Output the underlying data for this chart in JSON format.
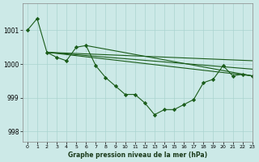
{
  "title": "Graphe pression niveau de la mer (hPa)",
  "xlim": [
    -0.5,
    23
  ],
  "ylim": [
    997.7,
    1001.8
  ],
  "yticks": [
    998,
    999,
    1000,
    1001
  ],
  "xticks": [
    0,
    1,
    2,
    3,
    4,
    5,
    6,
    7,
    8,
    9,
    10,
    11,
    12,
    13,
    14,
    15,
    16,
    17,
    18,
    19,
    20,
    21,
    22,
    23
  ],
  "bg_color": "#cce9e7",
  "grid_color": "#aad4d0",
  "line_color": "#1a5c1a",
  "line1": {
    "x": [
      0,
      1,
      2,
      3,
      4,
      5,
      6,
      7,
      8,
      9,
      10,
      11,
      12,
      13,
      14,
      15,
      16,
      17,
      18,
      19,
      20,
      21,
      22,
      23
    ],
    "y": [
      1001.0,
      1001.35,
      1000.35,
      1000.2,
      1000.1,
      1000.5,
      1000.55,
      999.95,
      999.6,
      999.35,
      999.1,
      999.1,
      998.85,
      998.5,
      998.65,
      998.65,
      998.8,
      998.95,
      999.45,
      999.55,
      999.95,
      999.65,
      999.7,
      999.65
    ]
  },
  "line2": {
    "x": [
      2,
      23
    ],
    "y": [
      1000.35,
      1000.1
    ]
  },
  "line3": {
    "x": [
      2,
      23
    ],
    "y": [
      1000.35,
      999.65
    ]
  },
  "line4": {
    "x": [
      6,
      23
    ],
    "y": [
      1000.55,
      999.65
    ]
  }
}
